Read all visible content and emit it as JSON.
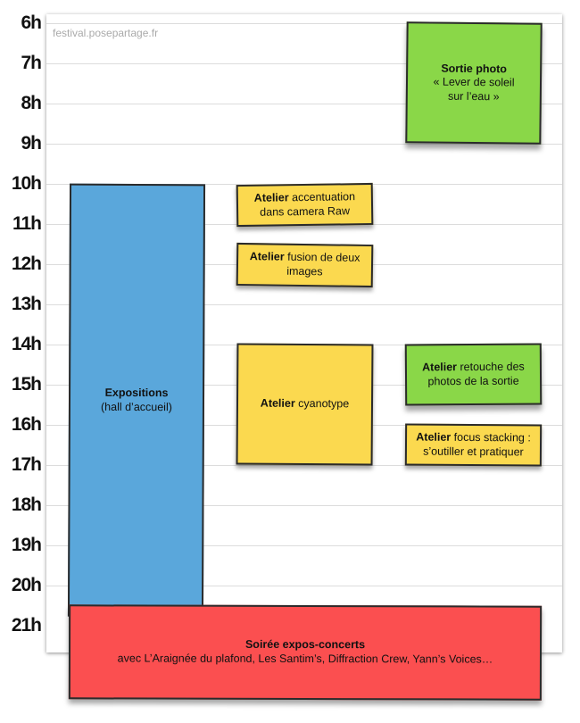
{
  "watermark": "festival.posepartage.fr",
  "hours": [
    "6h",
    "7h",
    "8h",
    "9h",
    "10h",
    "11h",
    "12h",
    "13h",
    "14h",
    "15h",
    "16h",
    "17h",
    "18h",
    "19h",
    "20h",
    "21h"
  ],
  "events": {
    "sortie_photo": {
      "title": "Sortie photo",
      "line1": "« Lever de soleil",
      "line2": "sur l’eau »",
      "color": "#8ad748"
    },
    "expositions": {
      "title": "Expositions",
      "subtitle": "(hall d’accueil)",
      "color": "#5aa7db"
    },
    "atelier_camera_raw": {
      "title": "Atelier",
      "line1": " accentuation",
      "line2": "dans camera Raw",
      "color": "#fbd94f"
    },
    "atelier_fusion": {
      "title": "Atelier",
      "line1": " fusion de deux",
      "line2": "images",
      "color": "#fbd94f"
    },
    "atelier_cyanotype": {
      "title": "Atelier",
      "line1": " cyanotype",
      "color": "#fbd94f"
    },
    "atelier_retouche": {
      "title": "Atelier",
      "line1": " retouche des",
      "line2": "photos de la sortie",
      "color": "#8ad748"
    },
    "atelier_focus": {
      "title": "Atelier",
      "line1": " focus stacking :",
      "line2": "s’outiller et pratiquer",
      "color": "#fbd94f"
    },
    "soiree": {
      "title": "Soirée expos-concerts",
      "subtitle": "avec L’Araignée du plafond, Les Santim’s, Diffraction Crew, Yann’s Voices…",
      "color": "#fb4f50"
    }
  }
}
